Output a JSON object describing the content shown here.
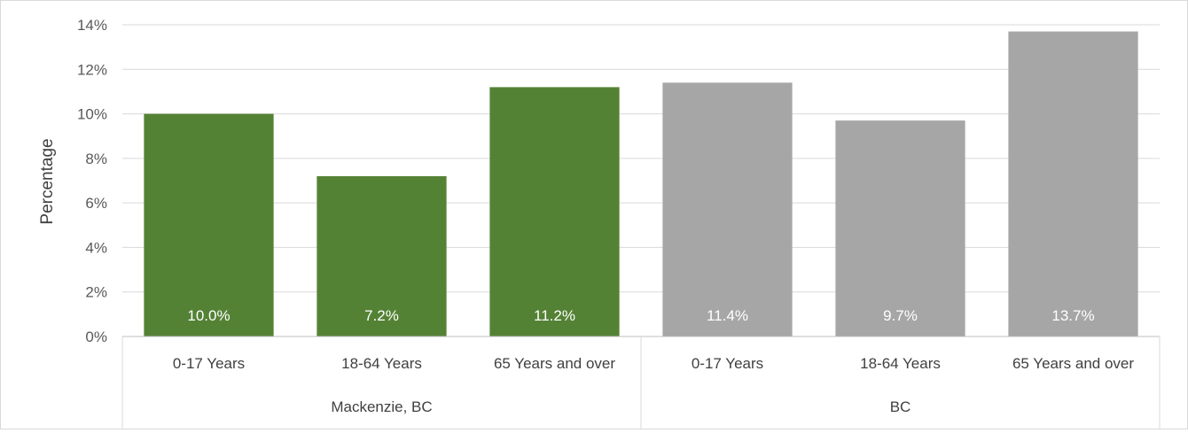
{
  "chart_data": {
    "type": "bar",
    "title": "",
    "xlabel": "",
    "ylabel": "Percentage",
    "ylim": [
      0,
      14
    ],
    "y_ticks": [
      "0%",
      "2%",
      "4%",
      "6%",
      "8%",
      "10%",
      "12%",
      "14%"
    ],
    "y_tick_values": [
      0,
      2,
      4,
      6,
      8,
      10,
      12,
      14
    ],
    "grid": true,
    "legend": "none",
    "groups": [
      {
        "name": "Mackenzie, BC",
        "color": "#548235",
        "categories": [
          "0-17 Years",
          "18-64 Years",
          "65 Years and over"
        ],
        "values": [
          10.0,
          7.2,
          11.2
        ],
        "labels": [
          "10.0%",
          "7.2%",
          "11.2%"
        ]
      },
      {
        "name": "BC",
        "color": "#a6a6a6",
        "categories": [
          "0-17 Years",
          "18-64 Years",
          "65 Years and over"
        ],
        "values": [
          11.4,
          9.7,
          13.7
        ],
        "labels": [
          "11.4%",
          "9.7%",
          "13.7%"
        ]
      }
    ]
  }
}
